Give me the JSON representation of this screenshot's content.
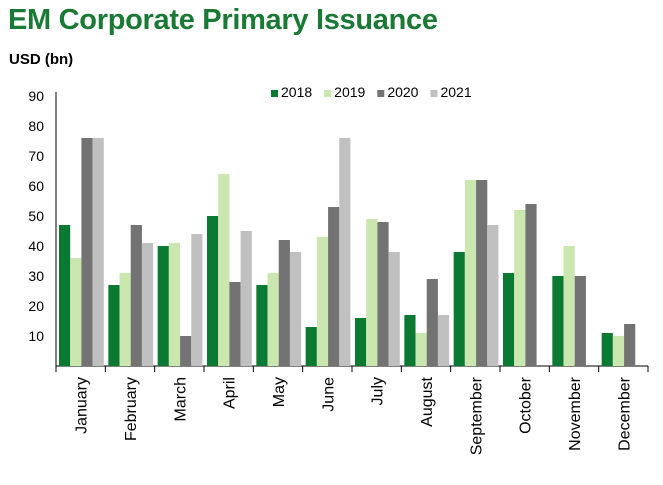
{
  "chart_data": {
    "type": "bar",
    "title": "EM Corporate Primary Issuance",
    "ylabel": "USD (bn)",
    "xlabel": "",
    "ylim": [
      0,
      90
    ],
    "yticks": [
      10,
      20,
      30,
      40,
      50,
      60,
      70,
      80,
      90
    ],
    "grid": false,
    "legend_position": "top-right",
    "categories": [
      "January",
      "February",
      "March",
      "April",
      "May",
      "June",
      "July",
      "August",
      "September",
      "October",
      "November",
      "December"
    ],
    "series": [
      {
        "name": "2018",
        "color": "#0a7a32",
        "values": [
          47,
          27,
          40,
          50,
          27,
          13,
          16,
          17,
          38,
          31,
          30,
          11
        ]
      },
      {
        "name": "2019",
        "color": "#c9e7ae",
        "values": [
          36,
          31,
          41,
          64,
          31,
          43,
          49,
          11,
          62,
          52,
          40,
          10
        ]
      },
      {
        "name": "2020",
        "color": "#737373",
        "values": [
          76,
          47,
          10,
          28,
          42,
          53,
          48,
          29,
          62,
          54,
          30,
          14
        ]
      },
      {
        "name": "2021",
        "color": "#c0c0c0",
        "values": [
          76,
          41,
          44,
          45,
          38,
          76,
          38,
          17,
          47,
          null,
          null,
          null
        ]
      }
    ]
  }
}
